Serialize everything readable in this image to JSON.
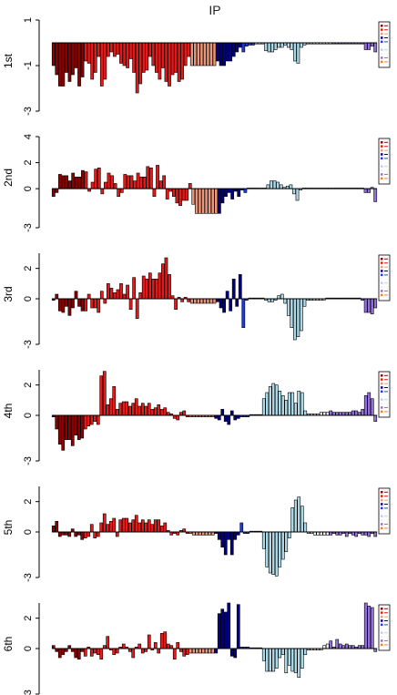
{
  "title": "IP",
  "chart_data": {
    "type": "bar",
    "title": "IP",
    "legend_placement": "right",
    "grid": false,
    "series_groups": [
      {
        "name": "g1",
        "color": "#8b0000",
        "count": 10
      },
      {
        "name": "g2",
        "color": "#e41a1a",
        "count": 33
      },
      {
        "name": "g3",
        "color": "#e9967a",
        "count": 8
      },
      {
        "name": "g4",
        "color": "#000080",
        "count": 8
      },
      {
        "name": "g5",
        "color": "#1f3bd6",
        "count": 4
      },
      {
        "name": "g6",
        "color": "#f5f5f5",
        "count": 2
      },
      {
        "name": "g7",
        "color": "#add8e6",
        "count": 16
      },
      {
        "name": "g8",
        "color": "#f0f0f0",
        "count": 6
      },
      {
        "name": "g9",
        "color": "#9370db",
        "count": 16
      },
      {
        "name": "g10",
        "color": "#f5822a",
        "count": 4
      }
    ],
    "panels": [
      {
        "ylabel": "1st",
        "yticks": [
          "1",
          "-1",
          "-3"
        ],
        "ylim": [
          -3,
          1
        ],
        "values": [
          -1.0,
          -1.4,
          -1.9,
          -1.9,
          -1.3,
          -1.7,
          -1.4,
          -1.1,
          -1.9,
          -1.5,
          -0.8,
          -0.9,
          -1.6,
          -1.3,
          -0.6,
          -1.9,
          -1.6,
          -0.6,
          -0.4,
          -0.6,
          -0.5,
          -0.9,
          -1.0,
          -1.1,
          -0.7,
          -1.3,
          -2.2,
          -1.8,
          -1.3,
          -1.2,
          -0.6,
          -1.0,
          -1.3,
          -1.6,
          -1.1,
          -1.7,
          -1.9,
          -1.4,
          -1.3,
          -1.7,
          -1.6,
          -1.0,
          -0.6,
          -1.0,
          -1.0,
          -1.0,
          -1.0,
          -1.0,
          -1.0,
          -1.0,
          -1.0,
          -0.8,
          -1.0,
          -1.0,
          -0.8,
          -0.8,
          -0.6,
          -0.4,
          -0.2,
          -0.4,
          -0.15,
          -0.1,
          -0.1,
          -0.05,
          -0.05,
          -0.05,
          -0.35,
          -0.4,
          -0.4,
          -0.3,
          -0.2,
          -0.2,
          -0.1,
          -0.2,
          -0.3,
          -0.8,
          -0.9,
          -0.2,
          -0.1,
          -0.05,
          -0.05,
          -0.05,
          -0.05,
          -0.05,
          -0.05,
          -0.05,
          -0.05,
          -0.05,
          -0.05,
          -0.05,
          -0.05,
          -0.05,
          -0.05,
          -0.05,
          -0.05,
          -0.05,
          -0.05,
          -0.3,
          -0.3,
          -0.15,
          -0.4
        ]
      },
      {
        "ylabel": "2nd",
        "yticks": [
          "4",
          "2",
          "0",
          "-3"
        ],
        "ylim": [
          -3,
          4
        ],
        "values": [
          -0.6,
          -0.3,
          1.1,
          1.0,
          1.0,
          0.6,
          1.2,
          0.9,
          0.9,
          1.4,
          1.3,
          -0.2,
          0.5,
          1.5,
          1.6,
          -0.4,
          0.5,
          1.2,
          1.0,
          0.4,
          -0.6,
          -0.3,
          1.1,
          1.0,
          1.0,
          0.6,
          1.2,
          0.9,
          0.9,
          1.7,
          1.6,
          -0.6,
          1.8,
          0.6,
          1.0,
          -0.8,
          -0.2,
          -0.6,
          -1.1,
          -1.3,
          -0.9,
          -0.9,
          0.4,
          -1.2,
          -1.9,
          -1.9,
          -1.9,
          -1.9,
          -1.9,
          -1.9,
          -1.9,
          -1.9,
          -1.1,
          -0.6,
          -0.3,
          -0.8,
          -0.2,
          -0.6,
          -0.1,
          -0.3,
          0.05,
          0.05,
          0.05,
          0.05,
          0.05,
          0.05,
          0.3,
          0.6,
          0.6,
          0.5,
          0.3,
          0.1,
          0.2,
          0.3,
          -0.4,
          -0.9,
          -0.1,
          0.05,
          0.05,
          0.05,
          0.05,
          0.05,
          0.05,
          0.05,
          0.05,
          0.05,
          0.05,
          0.05,
          0.05,
          0.05,
          0.05,
          0.05,
          0.05,
          0.05,
          0.05,
          0.05,
          -0.3,
          -0.3,
          0.1,
          -1.0
        ]
      },
      {
        "ylabel": "3rd",
        "yticks": [
          "2",
          "0",
          "-3"
        ],
        "ylim": [
          -3,
          3
        ],
        "values": [
          -0.1,
          0.3,
          -0.8,
          -0.9,
          -0.5,
          -1.1,
          -0.6,
          0.5,
          -0.5,
          -0.8,
          -0.8,
          0.3,
          -0.6,
          -0.6,
          -0.9,
          0.5,
          -0.3,
          1.0,
          0.7,
          0.4,
          0.6,
          1.0,
          0.3,
          0.9,
          -0.7,
          1.4,
          -1.3,
          0.4,
          1.5,
          1.3,
          1.7,
          1.3,
          1.3,
          1.7,
          2.3,
          2.7,
          1.6,
          0.2,
          -0.7,
          0.1,
          -0.2,
          0.1,
          -0.2,
          -0.3,
          -0.3,
          -0.3,
          -0.3,
          -0.3,
          -0.3,
          -0.3,
          -0.3,
          -0.2,
          -0.6,
          -0.9,
          0.5,
          -0.8,
          1.3,
          -0.5,
          1.6,
          -1.9,
          -0.1,
          0.05,
          0.05,
          0.05,
          0.05,
          0.05,
          -0.1,
          -0.2,
          -0.2,
          -0.1,
          0.2,
          0.3,
          -0.3,
          -1.1,
          -1.9,
          -2.7,
          -2.5,
          -2.1,
          -0.5,
          -0.1,
          -0.1,
          -0.1,
          -0.1,
          -0.1,
          -0.1,
          0.05,
          0.05,
          0.05,
          0.05,
          0.05,
          0.05,
          0.05,
          0.05,
          0.05,
          0.05,
          0.05,
          -0.1,
          -0.9,
          -0.9,
          -1.0,
          -0.6
        ]
      },
      {
        "ylabel": "4th",
        "yticks": [
          "2",
          "0",
          "-3"
        ],
        "ylim": [
          -3,
          3
        ],
        "values": [
          -0.1,
          -0.9,
          -1.9,
          -2.3,
          -1.6,
          -1.6,
          -2.0,
          -1.3,
          -1.6,
          -1.5,
          -0.9,
          -0.7,
          -0.6,
          -0.4,
          -0.6,
          2.6,
          2.9,
          0.7,
          1.1,
          1.9,
          0.4,
          0.8,
          0.9,
          0.9,
          0.6,
          0.8,
          1.1,
          0.6,
          0.8,
          0.6,
          0.8,
          0.4,
          0.5,
          0.7,
          0.4,
          0.5,
          0.2,
          0.1,
          -0.2,
          -0.3,
          0.2,
          0.3,
          -0.1,
          -0.1,
          -0.1,
          -0.1,
          -0.1,
          -0.1,
          -0.1,
          -0.1,
          -0.1,
          -0.2,
          -0.3,
          0.4,
          -0.4,
          -0.6,
          0.3,
          -0.3,
          -0.2,
          -0.1,
          -0.1,
          -0.1,
          0.05,
          0.05,
          0.05,
          0.05,
          1.1,
          1.5,
          1.9,
          2.1,
          2.0,
          1.6,
          1.3,
          1.0,
          1.5,
          1.5,
          0.8,
          1.6,
          1.5,
          0.3,
          0.1,
          0.1,
          0.1,
          0.1,
          0.2,
          0.2,
          0.2,
          0.3,
          0.2,
          0.2,
          0.2,
          0.2,
          0.2,
          0.2,
          0.3,
          0.3,
          0.2,
          0.4,
          1.3,
          1.5,
          1.1,
          -0.4
        ]
      },
      {
        "ylabel": "5th",
        "yticks": [
          "2",
          "0",
          "-3"
        ],
        "ylim": [
          -3,
          3
        ],
        "values": [
          0.4,
          0.7,
          -0.3,
          -0.2,
          -0.2,
          -0.3,
          0.2,
          -0.3,
          -0.2,
          -0.5,
          -0.4,
          -0.3,
          0.5,
          -0.4,
          -0.3,
          0.6,
          1.2,
          0.5,
          0.7,
          0.9,
          -0.3,
          0.8,
          0.9,
          0.9,
          0.6,
          0.8,
          1.1,
          0.6,
          0.8,
          0.6,
          0.8,
          0.5,
          0.8,
          0.8,
          0.4,
          0.6,
          0.1,
          -0.2,
          -0.1,
          -0.2,
          0.1,
          0.2,
          -0.1,
          -0.1,
          -0.2,
          -0.2,
          -0.2,
          -0.2,
          -0.2,
          -0.2,
          -0.2,
          -0.1,
          -0.5,
          -1.0,
          -1.5,
          -0.5,
          -1.5,
          -0.5,
          -0.2,
          0.6,
          -0.1,
          -0.1,
          0.05,
          0.05,
          0.05,
          0.05,
          -1.1,
          -2.3,
          -2.7,
          -2.8,
          -2.9,
          -2.3,
          -1.8,
          -1.3,
          -0.4,
          1.6,
          2.1,
          2.3,
          1.7,
          0.6,
          -0.1,
          -0.1,
          -0.2,
          -0.2,
          -0.2,
          -0.2,
          -0.2,
          -0.2,
          -0.1,
          -0.2,
          -0.2,
          -0.1,
          -0.3,
          -0.1,
          -0.2,
          -0.3,
          -0.1,
          -0.2,
          -0.2,
          -0.3,
          -0.1,
          -0.3
        ]
      },
      {
        "ylabel": "6th",
        "yticks": [
          "2",
          "0",
          "-3"
        ],
        "ylim": [
          -3,
          3
        ],
        "values": [
          0.2,
          -0.2,
          -0.6,
          -0.4,
          -0.2,
          0.2,
          -0.2,
          -0.6,
          -0.7,
          -0.2,
          -0.5,
          0.1,
          -0.5,
          -0.3,
          -0.4,
          -0.7,
          0.2,
          0.8,
          -0.1,
          -0.4,
          -0.3,
          0.1,
          0.3,
          0.1,
          -0.2,
          -0.6,
          0.1,
          0.3,
          -0.3,
          -0.2,
          0.9,
          -0.1,
          0.4,
          -0.3,
          1.0,
          1.1,
          0.3,
          0.2,
          -0.7,
          0.4,
          -0.2,
          -0.5,
          -0.4,
          -0.3,
          -0.3,
          -0.3,
          -0.3,
          -0.3,
          -0.3,
          -0.3,
          -0.3,
          -0.3,
          2.3,
          2.6,
          2.4,
          3.0,
          -0.5,
          -0.6,
          2.9,
          0.1,
          0.1,
          0.1,
          0.05,
          0.05,
          0.05,
          0.05,
          -0.8,
          -1.5,
          -1.5,
          -1.5,
          -1.3,
          -0.6,
          -0.4,
          -1.6,
          -1.1,
          -1.5,
          -1.6,
          -1.9,
          -1.3,
          -0.4,
          -0.1,
          -0.1,
          -0.1,
          -0.1,
          -0.1,
          0.2,
          0.3,
          0.5,
          0.1,
          0.6,
          0.3,
          0.2,
          0.3,
          0.2,
          0.2,
          0.1,
          0.2,
          0.2,
          3.0,
          2.8,
          2.7,
          -0.2
        ]
      }
    ]
  }
}
